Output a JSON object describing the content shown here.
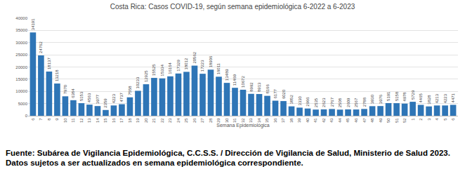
{
  "chart_data": {
    "type": "bar",
    "title": "Costa Rica: Casos COVID-19, según semana epidemiológica 6-2022 a 6-2023",
    "x_label": "Semana Epidemiológica",
    "categories": [
      "6",
      "7",
      "8",
      "9",
      "10",
      "11",
      "12",
      "13",
      "14",
      "15",
      "16",
      "17",
      "18",
      "19",
      "20",
      "21",
      "22",
      "23",
      "24",
      "25",
      "26",
      "27",
      "28",
      "29",
      "30",
      "31",
      "32",
      "33",
      "34",
      "35",
      "36",
      "37",
      "38",
      "39",
      "40",
      "41",
      "42",
      "43",
      "44",
      "45",
      "46",
      "47",
      "48",
      "49",
      "50",
      "51",
      "52",
      "1",
      "2",
      "3",
      "4",
      "5",
      "6"
    ],
    "values": [
      34191,
      24762,
      18137,
      13218,
      7970,
      6384,
      5153,
      4563,
      3977,
      2359,
      4223,
      4737,
      7558,
      10233,
      12925,
      15525,
      15334,
      16164,
      17329,
      18012,
      20562,
      17223,
      18906,
      16011,
      13489,
      11469,
      10672,
      8992,
      8913,
      8166,
      6177,
      6020,
      3852,
      3330,
      2966,
      2535,
      2623,
      2767,
      2508,
      2609,
      2567,
      2788,
      3930,
      3976,
      5191,
      5158,
      4978,
      5729,
      4465,
      3828,
      4213,
      4223,
      4471
    ],
    "color": "#2e75b6",
    "ylim": [
      0,
      40000
    ],
    "yticks": [
      0,
      5000,
      10000,
      15000,
      20000,
      25000,
      30000,
      35000,
      40000
    ],
    "grid": true,
    "data_labels": true,
    "note": "Fuente: Subárea de Vigilancia Epidemiológica, C.C.S.S. / Dirección de Vigilancia de Salud, Ministerio de Salud 2023. Datos sujetos a ser actualizados en semana epidemiológica correspondiente."
  }
}
